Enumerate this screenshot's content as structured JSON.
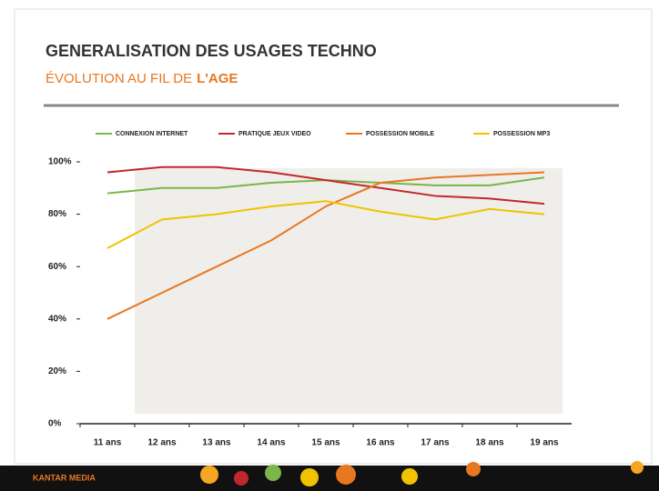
{
  "header": {
    "title": "GENERALISATION DES USAGES TECHNO",
    "subtitle": "ÉVOLUTION AU FIL DE",
    "subtitle_emphasis": "L'AGE"
  },
  "footer": {
    "brand": "KANTAR MEDIA"
  },
  "chart_data": {
    "type": "line",
    "categories": [
      "11 ans",
      "12 ans",
      "13 ans",
      "14 ans",
      "15 ans",
      "16 ans",
      "17 ans",
      "18 ans",
      "19 ans"
    ],
    "series": [
      {
        "name": "CONNEXION INTERNET",
        "color": "#7ab648",
        "values": [
          88,
          90,
          90,
          92,
          93,
          92,
          91,
          91,
          94
        ]
      },
      {
        "name": "PRATIQUE JEUX VIDEO",
        "color": "#c0282d",
        "values": [
          96,
          98,
          98,
          96,
          93,
          90,
          87,
          86,
          84
        ]
      },
      {
        "name": "POSSESSION MOBILE",
        "color": "#e87722",
        "values": [
          40,
          50,
          60,
          70,
          83,
          92,
          94,
          95,
          96
        ]
      },
      {
        "name": "POSSESSION MP3",
        "color": "#f2c200",
        "values": [
          67,
          78,
          80,
          83,
          85,
          81,
          78,
          82,
          80
        ]
      }
    ],
    "ylim": [
      0,
      100
    ],
    "yticks": [
      {
        "value": 0,
        "label": "0%"
      },
      {
        "value": 20,
        "label": "20%"
      },
      {
        "value": 40,
        "label": "40%"
      },
      {
        "value": 60,
        "label": "60%"
      },
      {
        "value": 80,
        "label": "80%"
      },
      {
        "value": 100,
        "label": "100%"
      }
    ],
    "legend": "top"
  }
}
